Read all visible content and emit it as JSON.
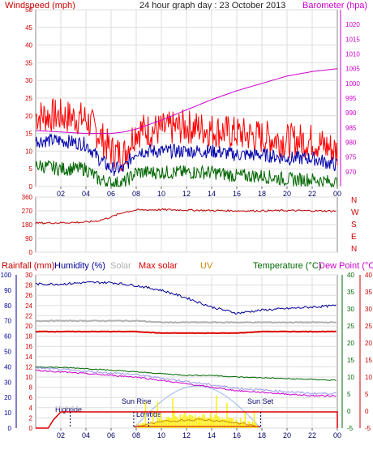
{
  "header": {
    "left_title": "Windspeed (mph)",
    "center_title": "24 hour graph day : 23 October 2013",
    "right_title": "Barometer (hpa)"
  },
  "colors": {
    "windspeed": "#ff0000",
    "barometer": "#cc00cc",
    "title_red": "#cc0000",
    "wind_blue": "#0000aa",
    "wind_green": "#006600",
    "direction": "#bb0000",
    "humidity": "#000099",
    "solar": "#b0b0b0",
    "max_solar": "#dd0000",
    "uv": "#cc8800",
    "temperature": "#006600",
    "dew_point": "#cc00cc",
    "rain": "#dd0000",
    "sun_curve": "#99bbee",
    "solar_fill": "#ffee00",
    "grid": "#dddddd"
  },
  "legend_bottom": {
    "rainfall": "Rainfall (mm)",
    "humidity": "Humidity (%)",
    "solar": "Solar",
    "max_solar": "Max solar",
    "uv": "UV",
    "temperature": "Temperature (°C)",
    "dew_point": "Dew Point (°C)"
  },
  "annotations": {
    "hightide": "Hightide",
    "sunrise": "Sun Rise",
    "lowtide": "Lowtide",
    "sunset": "Sun Set"
  },
  "x_ticks": [
    "02",
    "04",
    "06",
    "08",
    "10",
    "12",
    "14",
    "16",
    "18",
    "20",
    "22",
    "00"
  ],
  "chart_data": [
    {
      "type": "line",
      "panel": "wind",
      "title": "24 hour graph day : 23 October 2013",
      "ylabel_left": "Windspeed (mph)",
      "ylabel_right": "Barometer (hpa)",
      "ylim_left": [
        0,
        50
      ],
      "ylim_right": [
        965,
        1025
      ],
      "y_ticks_left": [
        0,
        5,
        10,
        15,
        20,
        25,
        30,
        35,
        40,
        45,
        50
      ],
      "y_ticks_right": [
        970,
        975,
        980,
        985,
        990,
        995,
        1000,
        1005,
        1010,
        1015,
        1020
      ],
      "x_hours": [
        0,
        2,
        4,
        5,
        6,
        7,
        8,
        10,
        12,
        14,
        16,
        18,
        20,
        22,
        24
      ],
      "series": [
        {
          "name": "Windspeed (mph)",
          "axis": "left",
          "values": [
            20,
            20,
            19,
            15,
            10,
            9,
            16,
            16,
            17,
            16,
            15,
            14,
            13,
            13,
            10
          ]
        },
        {
          "name": "",
          "axis": "left",
          "values": [
            13,
            13,
            12,
            8,
            5,
            5,
            10,
            10,
            10,
            10,
            9,
            9,
            8,
            8,
            6
          ]
        },
        {
          "name": "",
          "axis": "left",
          "values": [
            6,
            5,
            5,
            2,
            1,
            1,
            4,
            4,
            4,
            4,
            3,
            3,
            2,
            2,
            1
          ]
        },
        {
          "name": "Barometer (hpa)",
          "axis": "right",
          "values": [
            984,
            983.5,
            983,
            983,
            983,
            983.5,
            984.5,
            987.5,
            991,
            994.5,
            997.5,
            1000,
            1002.5,
            1004,
            1005
          ]
        }
      ]
    },
    {
      "type": "line",
      "panel": "direction",
      "ylim": [
        0,
        360
      ],
      "y_ticks": [
        0,
        90,
        180,
        270,
        360
      ],
      "y_ticks_right": [
        "N",
        "W",
        "S",
        "E",
        "N"
      ],
      "x_hours": [
        0,
        2,
        4,
        5,
        6,
        7,
        8,
        10,
        12,
        14,
        16,
        18,
        20,
        22,
        24
      ],
      "series": [
        {
          "name": "",
          "values": [
            190,
            192,
            196,
            205,
            230,
            260,
            275,
            278,
            275,
            272,
            270,
            270,
            272,
            270,
            268
          ]
        }
      ]
    },
    {
      "type": "line",
      "panel": "weather",
      "ylim_left_outer": [
        0,
        100
      ],
      "ylim_left_inner": [
        0,
        30
      ],
      "ylim_right_inner": [
        -5,
        40
      ],
      "ylim_right_outer": [
        -5,
        40
      ],
      "y_ticks_left_outer": [
        0,
        10,
        20,
        30,
        40,
        50,
        60,
        70,
        80,
        90,
        100
      ],
      "y_ticks_left_inner": [
        0,
        2,
        4,
        6,
        8,
        10,
        12,
        14,
        16,
        18,
        20,
        22,
        24,
        26,
        28,
        30
      ],
      "y_ticks_right_inner": [
        -5,
        0,
        5,
        10,
        15,
        20,
        25,
        30,
        35,
        40
      ],
      "y_ticks_right_outer": [
        -5,
        0,
        5,
        10,
        15,
        20,
        25,
        30,
        35,
        40
      ],
      "x_hours": [
        0,
        2,
        4,
        6,
        8,
        10,
        12,
        14,
        16,
        18,
        20,
        22,
        24
      ],
      "series": [
        {
          "name": "Humidity (%)",
          "axis": "left_outer",
          "values": [
            94,
            94,
            95,
            95,
            93,
            90,
            85,
            79,
            75,
            77,
            78,
            79,
            80
          ]
        },
        {
          "name": "Temperature (°C)",
          "axis": "right_inner",
          "values": [
            13,
            12.8,
            12.5,
            12,
            11.5,
            11,
            10.5,
            10.5,
            10,
            9.8,
            9.5,
            9.3,
            9
          ]
        },
        {
          "name": "Dew Point (°C)",
          "axis": "right_inner",
          "values": [
            12,
            11.5,
            11,
            10.5,
            10,
            9,
            8,
            7,
            6,
            5.5,
            5,
            4.5,
            4.5
          ]
        },
        {
          "name": "Max solar",
          "axis": "left_outer",
          "values": [
            63,
            63,
            63,
            63,
            63,
            62,
            62,
            62,
            62,
            63,
            63,
            63,
            63
          ]
        },
        {
          "name": "Solar",
          "axis": "left_outer",
          "values": [
            70,
            70,
            70,
            70,
            70,
            69,
            69,
            69,
            69,
            69,
            69,
            69,
            69
          ]
        },
        {
          "name": "Rainfall (mm)",
          "axis": "left_outer",
          "values": [
            0,
            9,
            9,
            9,
            9,
            9,
            9,
            9,
            9,
            9,
            9,
            9,
            9
          ]
        }
      ],
      "events": {
        "hightide_hour": 2.75,
        "sunrise_hour": 7.8,
        "lowtide_hour": 9,
        "sunset_hour": 17.9,
        "solar_peak_hour": 13
      }
    }
  ]
}
